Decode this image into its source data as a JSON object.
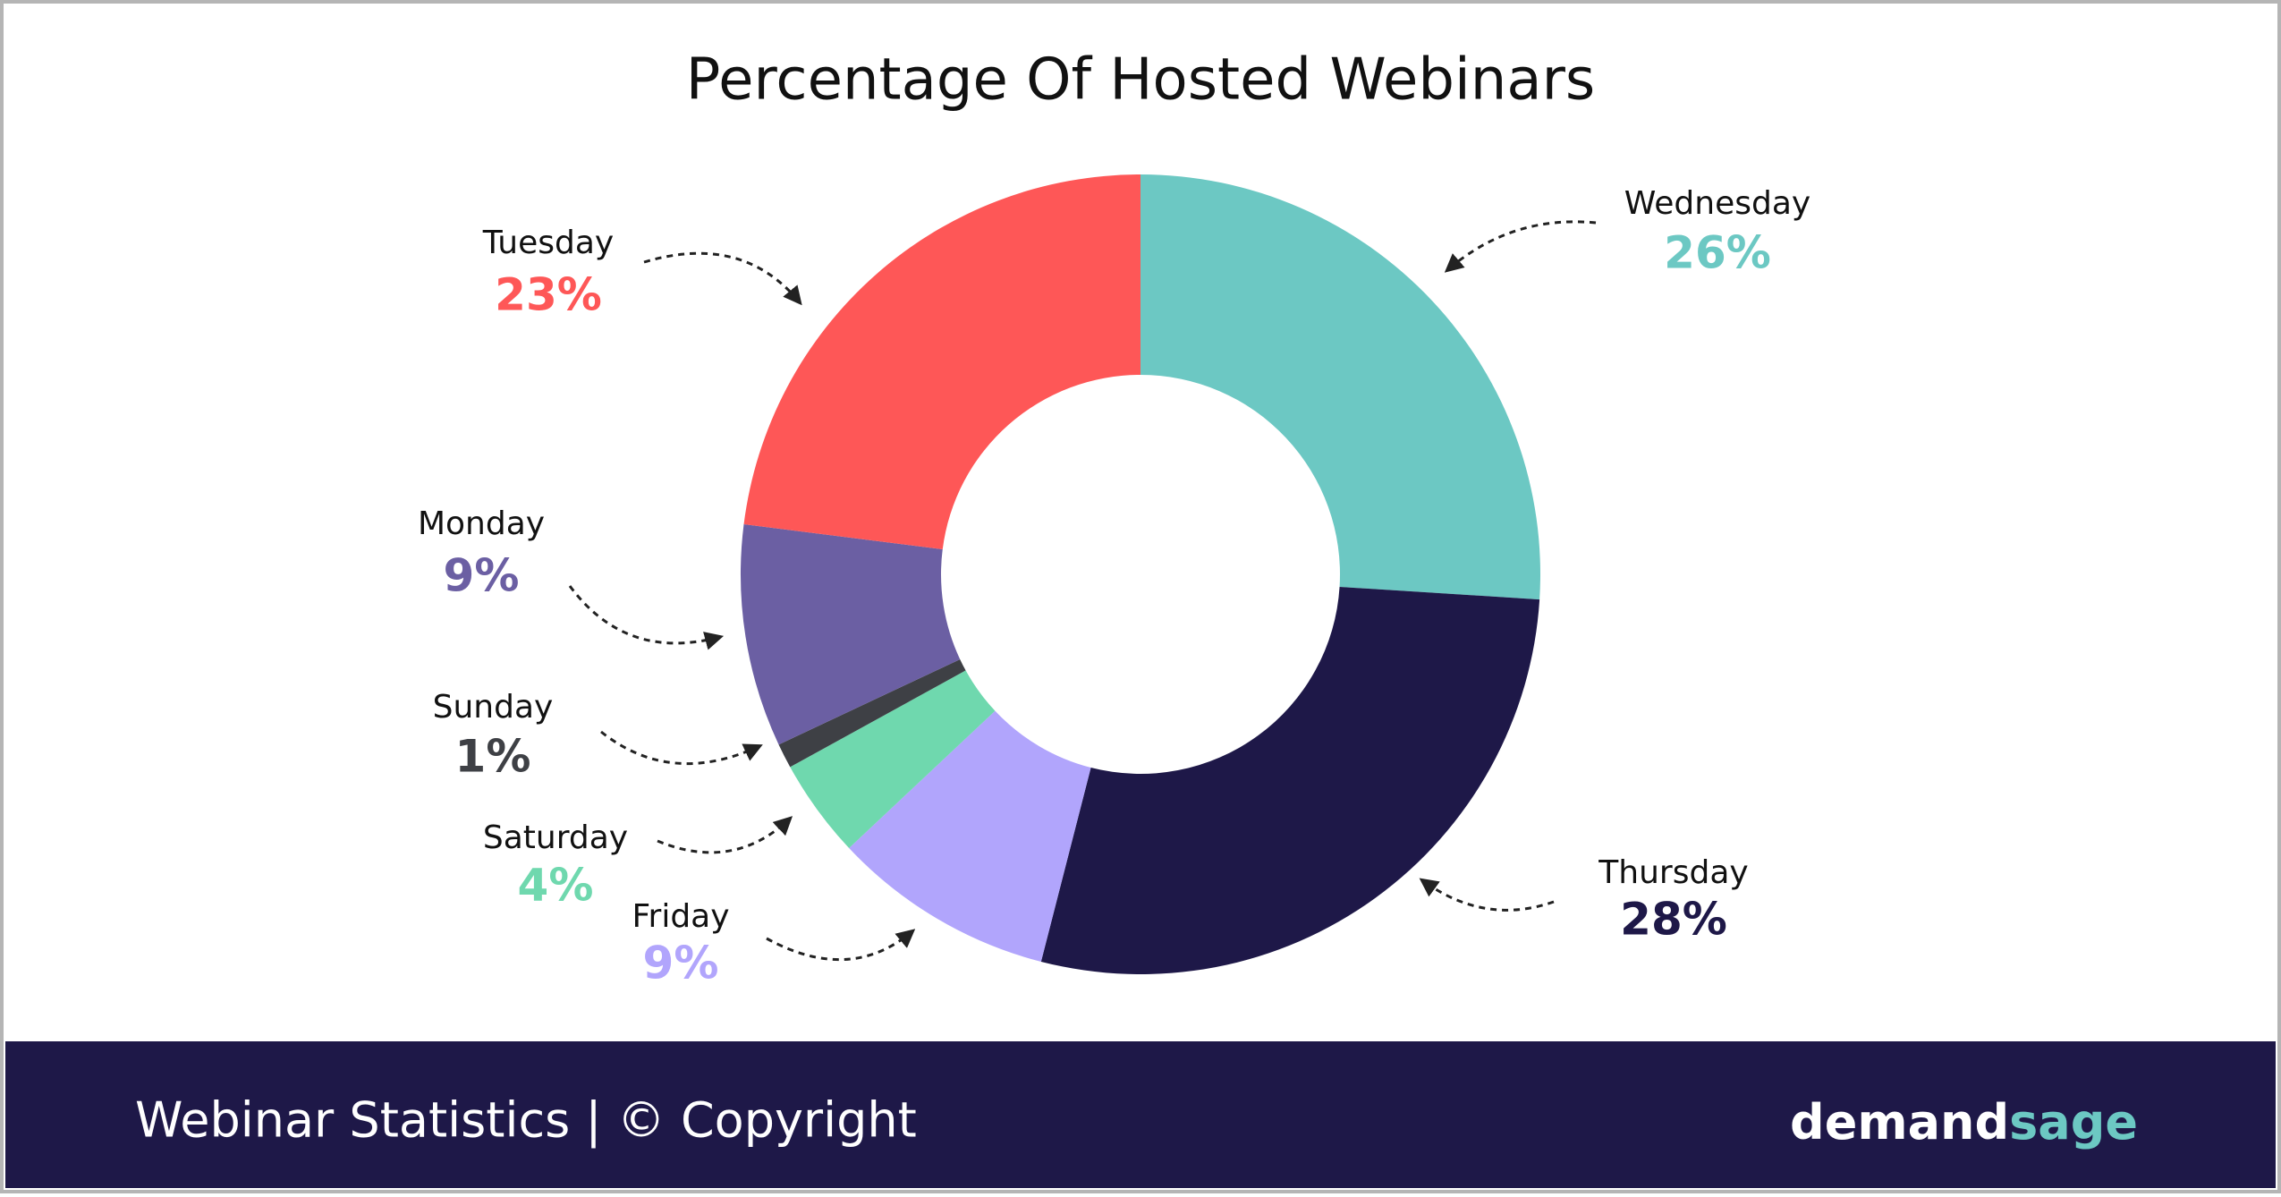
{
  "chart_data": {
    "type": "donut",
    "title": "Percentage Of Hosted Webinars",
    "categories": [
      "Wednesday",
      "Thursday",
      "Friday",
      "Saturday",
      "Sunday",
      "Monday",
      "Tuesday"
    ],
    "values": [
      26,
      28,
      9,
      4,
      1,
      9,
      23
    ],
    "value_labels": [
      "26%",
      "28%",
      "9%",
      "4%",
      "1%",
      "9%",
      "23%"
    ],
    "colors": [
      "#6cc8c3",
      "#1e1848",
      "#b1a5fc",
      "#6fd8ae",
      "#3e4045",
      "#6b5fa3",
      "#fe5757"
    ]
  },
  "footer": {
    "text": "Webinar Statistics | © Copyright",
    "brand": [
      "demand",
      "sage"
    ]
  }
}
